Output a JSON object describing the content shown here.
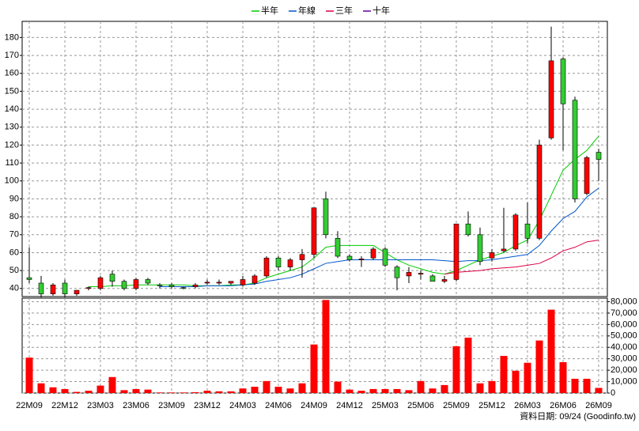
{
  "chart_data": {
    "type": "candlestick",
    "categories": [
      "22M09",
      null,
      null,
      "22M12",
      null,
      null,
      "23M03",
      null,
      null,
      "23M06",
      null,
      null,
      "23M09",
      null,
      null,
      "23M12",
      null,
      null,
      "24M03",
      null,
      null,
      "24M06",
      null,
      null,
      "24M09",
      null,
      null,
      "24M12",
      null,
      null,
      "25M03",
      null,
      null,
      "25M06",
      null,
      null,
      "25M09",
      null,
      null,
      "25M12",
      null,
      null,
      "26M03",
      null,
      null,
      "26M06",
      null,
      null,
      "26M09"
    ],
    "open": [
      46,
      43,
      37,
      43,
      37,
      40,
      40,
      48,
      44,
      40,
      45,
      42,
      42,
      40.5,
      41,
      43,
      43,
      43,
      42,
      43,
      47,
      57,
      52,
      56,
      59,
      90,
      68,
      58,
      56,
      57,
      62,
      52,
      47,
      48,
      47,
      44,
      45,
      76,
      70,
      57,
      61,
      62,
      76,
      68,
      124,
      168,
      145,
      93,
      116
    ],
    "high": [
      63,
      47,
      43,
      45,
      39,
      41,
      47,
      50,
      45,
      46,
      46,
      43,
      43,
      41,
      43,
      45,
      45,
      44,
      47,
      48,
      58,
      58,
      57,
      62,
      85,
      94,
      72,
      59,
      58,
      63,
      63,
      53,
      52,
      50,
      48,
      47,
      76,
      83,
      74,
      62,
      85,
      82,
      88,
      123,
      186,
      169,
      147,
      114,
      118
    ],
    "low": [
      43,
      35,
      36,
      35,
      36,
      39,
      39,
      41,
      39,
      39,
      42,
      40,
      40,
      39.5,
      40,
      42,
      42,
      42,
      41,
      42,
      46,
      50,
      50,
      46,
      57,
      68,
      57,
      55,
      52,
      56,
      52,
      39,
      43,
      45,
      44,
      43,
      44,
      69,
      53,
      55,
      60,
      61,
      65,
      67,
      123,
      117,
      88,
      92,
      100
    ],
    "close": [
      45,
      37,
      42,
      37,
      39,
      40.5,
      46,
      44,
      40,
      45,
      43,
      41.5,
      41,
      40,
      42,
      43.5,
      43.5,
      44,
      45,
      47,
      57,
      52,
      56,
      59,
      85,
      70,
      58,
      56,
      56.5,
      62,
      53,
      46,
      49,
      48.5,
      44,
      45,
      76,
      70,
      55,
      60,
      62,
      81,
      68,
      120,
      167,
      143,
      90,
      113,
      112
    ],
    "up_color": "#ff0000",
    "down_color": "#33cc33",
    "ylim": [
      35.5,
      189
    ],
    "yticks": [
      40,
      50,
      60,
      70,
      80,
      90,
      100,
      110,
      120,
      130,
      140,
      150,
      160,
      170,
      180
    ],
    "grid": true,
    "series": [
      {
        "name": "半年",
        "color": "#00cc00",
        "values": [
          null,
          null,
          null,
          null,
          null,
          41,
          41,
          41.5,
          41.5,
          42,
          42,
          42,
          42,
          42,
          41.5,
          41.5,
          41.5,
          42,
          42,
          43,
          46,
          48,
          50,
          52,
          57,
          63,
          64,
          64,
          64,
          64,
          60,
          56,
          53,
          51,
          49,
          48,
          50,
          53,
          56,
          58,
          60,
          64,
          67,
          78,
          92,
          106,
          112,
          117,
          125
        ]
      },
      {
        "name": "年線",
        "color": "#0055cc",
        "values": [
          null,
          null,
          null,
          null,
          null,
          null,
          null,
          null,
          null,
          null,
          null,
          41,
          41,
          41,
          41,
          41.5,
          41.5,
          41.5,
          42,
          42.5,
          44,
          45,
          46,
          48,
          51,
          54,
          55,
          56,
          56,
          56,
          56,
          56,
          56,
          56,
          56,
          55.5,
          55,
          55.5,
          55.5,
          56,
          57,
          58,
          59,
          64,
          72,
          79,
          83,
          91,
          96
        ]
      },
      {
        "name": "三年",
        "color": "#dd0044",
        "values": [
          null,
          null,
          null,
          null,
          null,
          null,
          null,
          null,
          null,
          null,
          null,
          null,
          null,
          null,
          null,
          null,
          null,
          null,
          null,
          null,
          null,
          null,
          null,
          null,
          null,
          null,
          null,
          null,
          null,
          null,
          null,
          null,
          null,
          null,
          null,
          48,
          49,
          49.5,
          50,
          51,
          51.5,
          52,
          53,
          54,
          57,
          61,
          63,
          66,
          67
        ]
      },
      {
        "name": "十年",
        "color": "#660099",
        "values": [
          null,
          null,
          null,
          null,
          null,
          null,
          null,
          null,
          null,
          null,
          null,
          null,
          null,
          null,
          null,
          null,
          null,
          null,
          null,
          null,
          null,
          null,
          null,
          null,
          null,
          null,
          null,
          null,
          null,
          null,
          null,
          null,
          null,
          null,
          null,
          null,
          null,
          null,
          null,
          null,
          null,
          null,
          null,
          null,
          null,
          null,
          null,
          null,
          null
        ]
      }
    ],
    "volume": {
      "color": "#ff0000",
      "values": [
        31000,
        8500,
        5000,
        3500,
        1000,
        2000,
        6500,
        14000,
        2500,
        3500,
        3000,
        500,
        500,
        500,
        700,
        2000,
        1500,
        1500,
        4000,
        5500,
        10500,
        5500,
        4000,
        8500,
        42500,
        81500,
        10000,
        3000,
        2000,
        3500,
        3500,
        3500,
        2500,
        10500,
        4000,
        7000,
        41000,
        48500,
        8500,
        10500,
        32500,
        19500,
        26500,
        46000,
        73000,
        27000,
        12500,
        12500,
        4500
      ],
      "ylim": [
        0,
        83100
      ],
      "yticks": [
        0,
        {
          "value": 10000,
          "label": "10,000"
        },
        {
          "value": 20000,
          "label": "20,000"
        },
        {
          "value": 30000,
          "label": "30,000"
        },
        {
          "value": 40000,
          "label": "40,000"
        },
        {
          "value": 50000,
          "label": "50,000"
        },
        {
          "value": 60000,
          "label": "60,000"
        },
        {
          "value": 70000,
          "label": "70,000"
        },
        {
          "value": 80000,
          "label": "80,000"
        }
      ]
    },
    "footer": "資料日期: 09/24 (Goodinfo.tw)"
  }
}
